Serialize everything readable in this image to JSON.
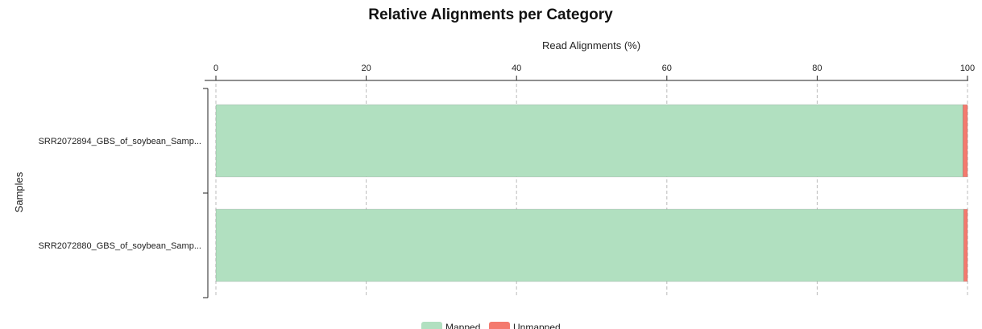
{
  "chart_data": {
    "type": "bar",
    "orientation": "horizontal",
    "stacked": true,
    "title": "Relative Alignments per Category",
    "xlabel": "Read Alignments (%)",
    "ylabel": "Samples",
    "xlim": [
      0,
      100
    ],
    "xticks": [
      0,
      20,
      40,
      60,
      80,
      100
    ],
    "grid": true,
    "legend_position": "bottom",
    "categories": [
      "SRR2072894_GBS_of_soybean_Samp...",
      "SRR2072880_GBS_of_soybean_Samp..."
    ],
    "series": [
      {
        "name": "Mapped",
        "color": "#b1e0c0",
        "values": [
          99.4,
          99.5
        ]
      },
      {
        "name": "Unmapped",
        "color": "#f47a6e",
        "values": [
          0.6,
          0.5
        ]
      }
    ]
  }
}
